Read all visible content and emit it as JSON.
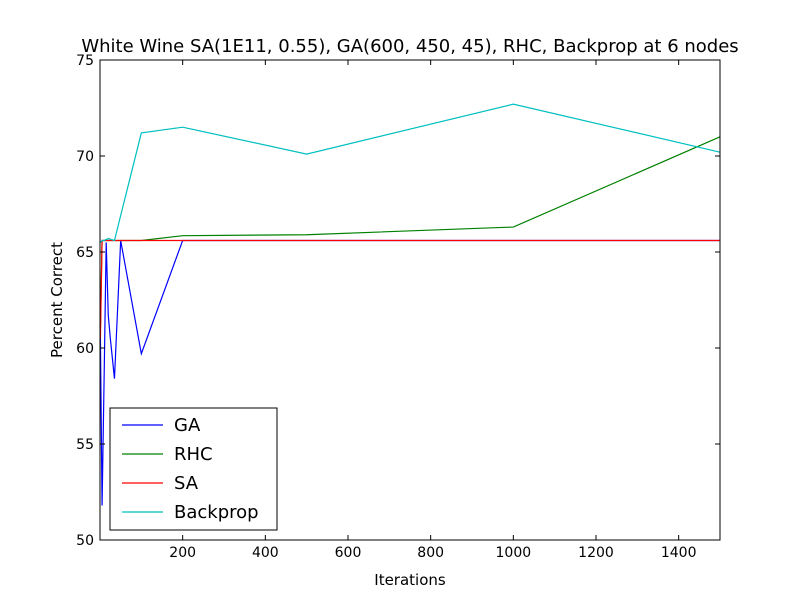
{
  "chart_data": {
    "type": "line",
    "title": "White Wine SA(1E11, 0.55), GA(600, 450, 45), RHC, Backprop at 6 nodes",
    "xlabel": "Iterations",
    "ylabel": "Percent Correct",
    "xlim": [
      0,
      1500
    ],
    "ylim": [
      50,
      75
    ],
    "xticks": [
      200,
      400,
      600,
      800,
      1000,
      1200,
      1400
    ],
    "yticks": [
      50,
      55,
      60,
      65,
      70,
      75
    ],
    "grid": false,
    "legend": "lower-left",
    "series": [
      {
        "name": "GA",
        "color": "#0000ff",
        "x": [
          1,
          5,
          10,
          15,
          20,
          25,
          35,
          50,
          100,
          200,
          500,
          1000,
          1500
        ],
        "y": [
          60.5,
          51.8,
          58.5,
          65.5,
          61.7,
          60.5,
          58.4,
          65.6,
          59.7,
          65.6,
          65.6,
          65.6,
          65.6
        ]
      },
      {
        "name": "RHC",
        "color": "#008000",
        "x": [
          1,
          5,
          10,
          20,
          35,
          50,
          100,
          200,
          500,
          1000,
          1500
        ],
        "y": [
          61.0,
          65.6,
          65.6,
          65.6,
          65.6,
          65.6,
          65.6,
          65.85,
          65.9,
          66.3,
          71.0
        ]
      },
      {
        "name": "SA",
        "color": "#ff0000",
        "x": [
          1,
          5,
          10,
          20,
          50,
          100,
          200,
          500,
          1000,
          1500
        ],
        "y": [
          60.5,
          65.6,
          65.6,
          65.6,
          65.6,
          65.6,
          65.6,
          65.6,
          65.6,
          65.6
        ]
      },
      {
        "name": "Backprop",
        "color": "#00bfbf",
        "x": [
          1,
          5,
          10,
          20,
          35,
          50,
          100,
          200,
          500,
          1000,
          1500
        ],
        "y": [
          65.5,
          65.6,
          65.6,
          65.7,
          65.6,
          66.9,
          71.2,
          71.5,
          70.1,
          72.7,
          70.2
        ]
      }
    ]
  }
}
